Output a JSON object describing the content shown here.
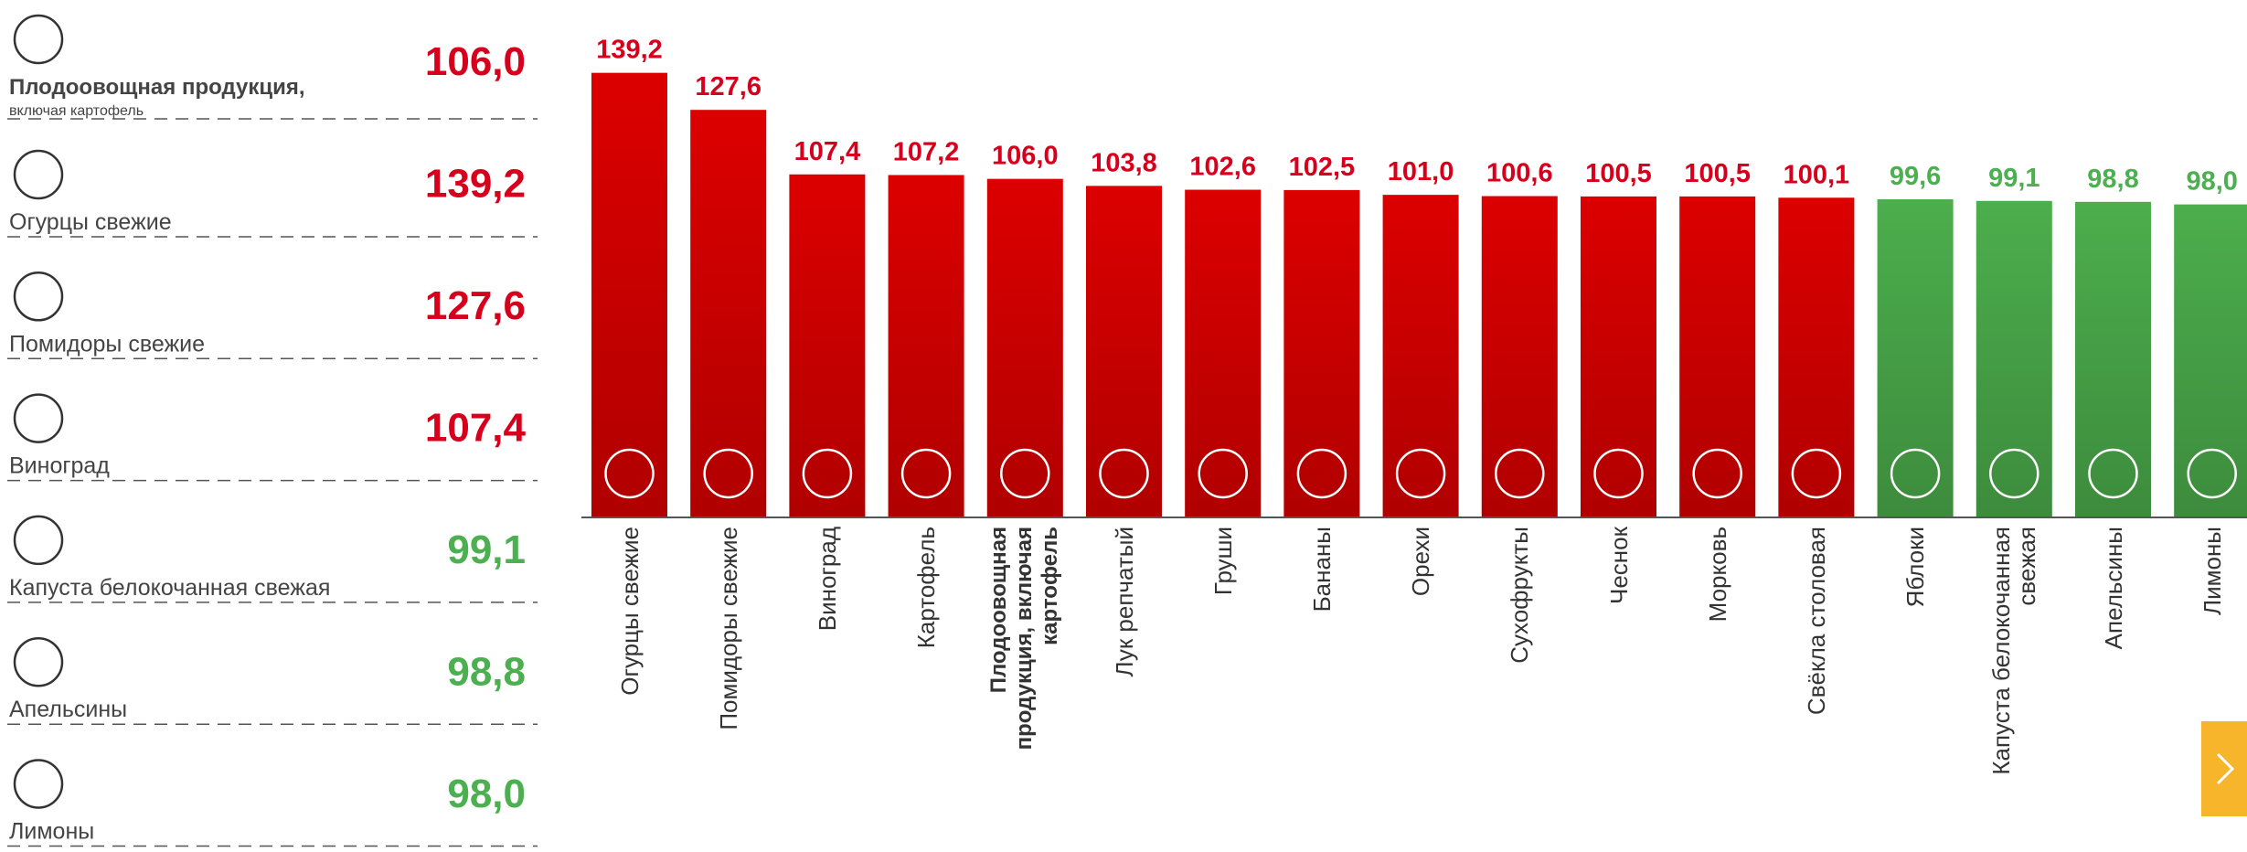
{
  "list": {
    "items": [
      {
        "label": "Плодоовощная продукция,",
        "note": "включая картофель",
        "value": "106,0",
        "color": "#d6001c"
      },
      {
        "label": "Огурцы свежие",
        "value": "139,2",
        "color": "#d6001c"
      },
      {
        "label": "Помидоры свежие",
        "value": "127,6",
        "color": "#d6001c"
      },
      {
        "label": "Виноград",
        "value": "107,4",
        "color": "#d6001c"
      },
      {
        "label": "Капуста белокочанная свежая",
        "value": "99,1",
        "color": "#4caf50"
      },
      {
        "label": "Апельсины",
        "value": "98,8",
        "color": "#4caf50"
      },
      {
        "label": "Лимоны",
        "value": "98,0",
        "color": "#4caf50"
      }
    ]
  },
  "chart_data": {
    "type": "bar",
    "categories": [
      "Огурцы свежие",
      "Помидоры свежие",
      "Виноград",
      "Картофель",
      "Плодоовощная продукция, включая картофель",
      "Лук репчатый",
      "Груши",
      "Бананы",
      "Орехи",
      "Сухофрукты",
      "Чеснок",
      "Морковь",
      "Свёкла столовая",
      "Яблоки",
      "Капуста белокочанная свежая",
      "Апельсины",
      "Лимоны"
    ],
    "values": [
      139.2,
      127.6,
      107.4,
      107.2,
      106.0,
      103.8,
      102.6,
      102.5,
      101.0,
      100.6,
      100.5,
      100.5,
      100.1,
      99.6,
      99.1,
      98.8,
      98.0
    ],
    "value_labels": [
      "139,2",
      "127,6",
      "107,4",
      "107,2",
      "106,0",
      "103,8",
      "102,6",
      "102,5",
      "101,0",
      "100,6",
      "100,5",
      "100,5",
      "100,1",
      "99,6",
      "99,1",
      "98,8",
      "98,0"
    ],
    "colors": [
      "#dc0000",
      "#dc0000",
      "#dc0000",
      "#dc0000",
      "#dc0000",
      "#dc0000",
      "#dc0000",
      "#dc0000",
      "#dc0000",
      "#dc0000",
      "#dc0000",
      "#dc0000",
      "#dc0000",
      "#4cae4c",
      "#4cae4c",
      "#4cae4c",
      "#4cae4c"
    ],
    "label_colors": [
      "#d6001c",
      "#d6001c",
      "#d6001c",
      "#d6001c",
      "#d6001c",
      "#d6001c",
      "#d6001c",
      "#d6001c",
      "#d6001c",
      "#d6001c",
      "#d6001c",
      "#d6001c",
      "#d6001c",
      "#4caf50",
      "#4caf50",
      "#4caf50",
      "#4caf50"
    ],
    "ylim": [
      0,
      160
    ]
  }
}
